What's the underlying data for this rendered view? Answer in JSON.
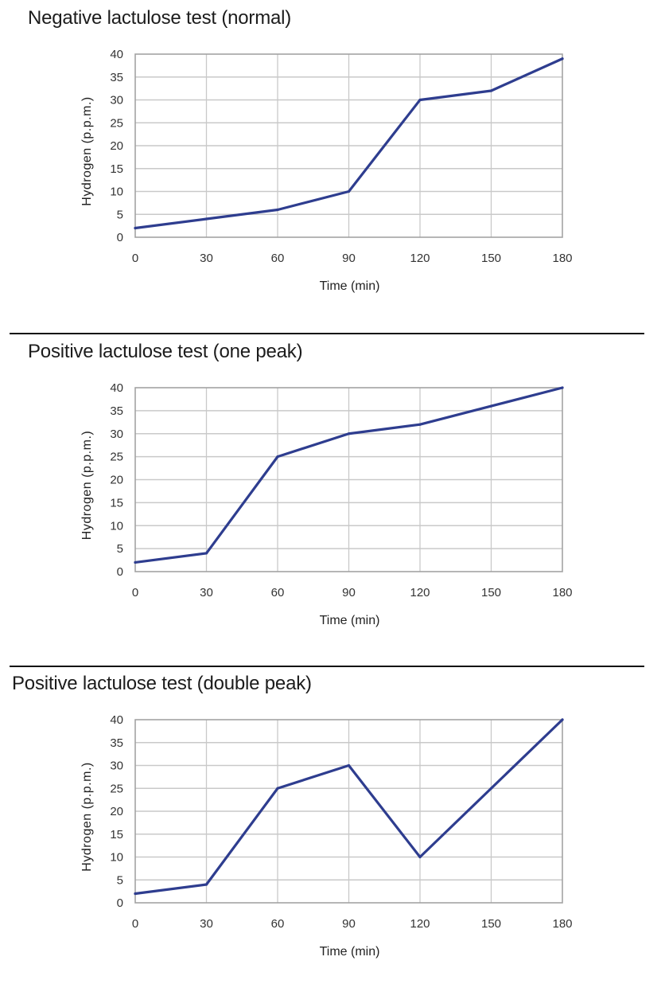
{
  "chart_data": [
    {
      "type": "line",
      "title": "Negative lactulose test (normal)",
      "xlabel": "Time (min)",
      "ylabel": "Hydrogen (p.p.m.)",
      "x": [
        0,
        30,
        60,
        90,
        120,
        150,
        180
      ],
      "series": [
        {
          "name": "Hydrogen",
          "values": [
            2,
            4,
            6,
            10,
            30,
            32,
            39
          ]
        }
      ],
      "xticks": [
        "0",
        "30",
        "60",
        "90",
        "120",
        "150",
        "180"
      ],
      "yticks": [
        "0",
        "5",
        "10",
        "15",
        "20",
        "25",
        "30",
        "35",
        "40"
      ],
      "xlim": [
        0,
        180
      ],
      "ylim": [
        0,
        40
      ],
      "grid": true,
      "legend": "none"
    },
    {
      "type": "line",
      "title": "Positive lactulose test (one peak)",
      "xlabel": "Time (min)",
      "ylabel": "Hydrogen (p.p.m.)",
      "x": [
        0,
        30,
        60,
        90,
        120,
        150,
        180
      ],
      "series": [
        {
          "name": "Hydrogen",
          "values": [
            2,
            4,
            25,
            30,
            32,
            36,
            40
          ]
        }
      ],
      "xticks": [
        "0",
        "30",
        "60",
        "90",
        "120",
        "150",
        "180"
      ],
      "yticks": [
        "0",
        "5",
        "10",
        "15",
        "20",
        "25",
        "30",
        "35",
        "40"
      ],
      "xlim": [
        0,
        180
      ],
      "ylim": [
        0,
        40
      ],
      "grid": true,
      "legend": "none"
    },
    {
      "type": "line",
      "title": "Positive lactulose test (double peak)",
      "xlabel": "Time (min)",
      "ylabel": "Hydrogen (p.p.m.)",
      "x": [
        0,
        30,
        60,
        90,
        120,
        150,
        180
      ],
      "series": [
        {
          "name": "Hydrogen",
          "values": [
            2,
            4,
            25,
            30,
            10,
            25,
            40
          ]
        }
      ],
      "xticks": [
        "0",
        "30",
        "60",
        "90",
        "120",
        "150",
        "180"
      ],
      "yticks": [
        "0",
        "5",
        "10",
        "15",
        "20",
        "25",
        "30",
        "35",
        "40"
      ],
      "xlim": [
        0,
        180
      ],
      "ylim": [
        0,
        40
      ],
      "grid": true,
      "legend": "none"
    }
  ],
  "colors": {
    "line": "#2e3d8f",
    "grid": "#c9c9c9",
    "axis": "#a3a3a3",
    "divider": "#111111"
  }
}
